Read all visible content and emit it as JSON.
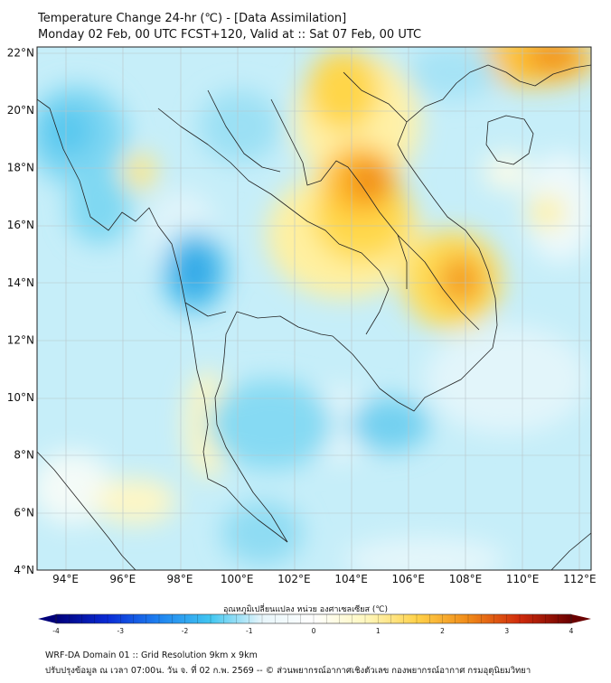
{
  "header": {
    "title_line1": "Temperature Change 24-hr (℃) - [Data Assimilation]",
    "title_line2": "Monday 02 Feb, 00 UTC FCST+120, Valid at :: Sat 07 Feb, 00 UTC"
  },
  "map": {
    "lat_ticks": [
      "22°N",
      "20°N",
      "18°N",
      "16°N",
      "14°N",
      "12°N",
      "10°N",
      "8°N",
      "6°N",
      "4°N"
    ],
    "lon_ticks": [
      "94°E",
      "96°E",
      "98°E",
      "100°E",
      "102°E",
      "104°E",
      "106°E",
      "108°E",
      "110°E",
      "112°E"
    ],
    "lon_range": [
      93,
      112.4
    ],
    "lat_range": [
      4,
      22.2
    ],
    "warm_areas": [
      {
        "name": "laos-northeast",
        "lon": 104.6,
        "lat": 17.5,
        "level": 2.4
      },
      {
        "name": "laos-north",
        "lon": 103.0,
        "lat": 19.8,
        "level": 1.2
      },
      {
        "name": "vietnam-central",
        "lon": 108.0,
        "lat": 14.0,
        "level": 1.9
      },
      {
        "name": "south-china",
        "lon": 111.5,
        "lat": 22.0,
        "level": 2.0
      },
      {
        "name": "myanmar-north",
        "lon": 96.2,
        "lat": 17.8,
        "level": 0.8
      },
      {
        "name": "thailand-northeast",
        "lon": 103.5,
        "lat": 15.5,
        "level": 1.2
      }
    ],
    "cool_areas": [
      {
        "name": "thai-myanmar-border",
        "lon": 98.4,
        "lat": 14.4,
        "level": -1.9
      },
      {
        "name": "bay-of-bengal-north",
        "lon": 94.8,
        "lat": 19.5,
        "level": -1.3
      },
      {
        "name": "gulf-of-thailand",
        "lon": 101.5,
        "lat": 9.0,
        "level": -1.0
      }
    ]
  },
  "colorbar": {
    "label": "อุณหภูมิเปลี่ยนแปลง หน่วย องศาเซลเซียส (℃)",
    "ticks": [
      "-4",
      "-3",
      "-2",
      "-1",
      "0",
      "1",
      "2",
      "3",
      "4"
    ],
    "min": -4,
    "max": 4,
    "colors": [
      "#00007a",
      "#0a2bd6",
      "#1f83f0",
      "#41c6f0",
      "#e8f6fb",
      "#ffffff",
      "#fff8c0",
      "#ffd24a",
      "#f08a18",
      "#d02b0c",
      "#6a0000"
    ]
  },
  "footer": {
    "line1": "WRF-DA Domain 01 :: Grid Resolution 9km x 9km",
    "line2": "ปรับปรุงข้อมูล ณ เวลา 07:00น. วัน จ. ที่ 02 ก.พ. 2569 -- © ส่วนพยากรณ์อากาศเชิงตัวเลข กองพยากรณ์อากาศ กรมอุตุนิยมวิทยา"
  }
}
